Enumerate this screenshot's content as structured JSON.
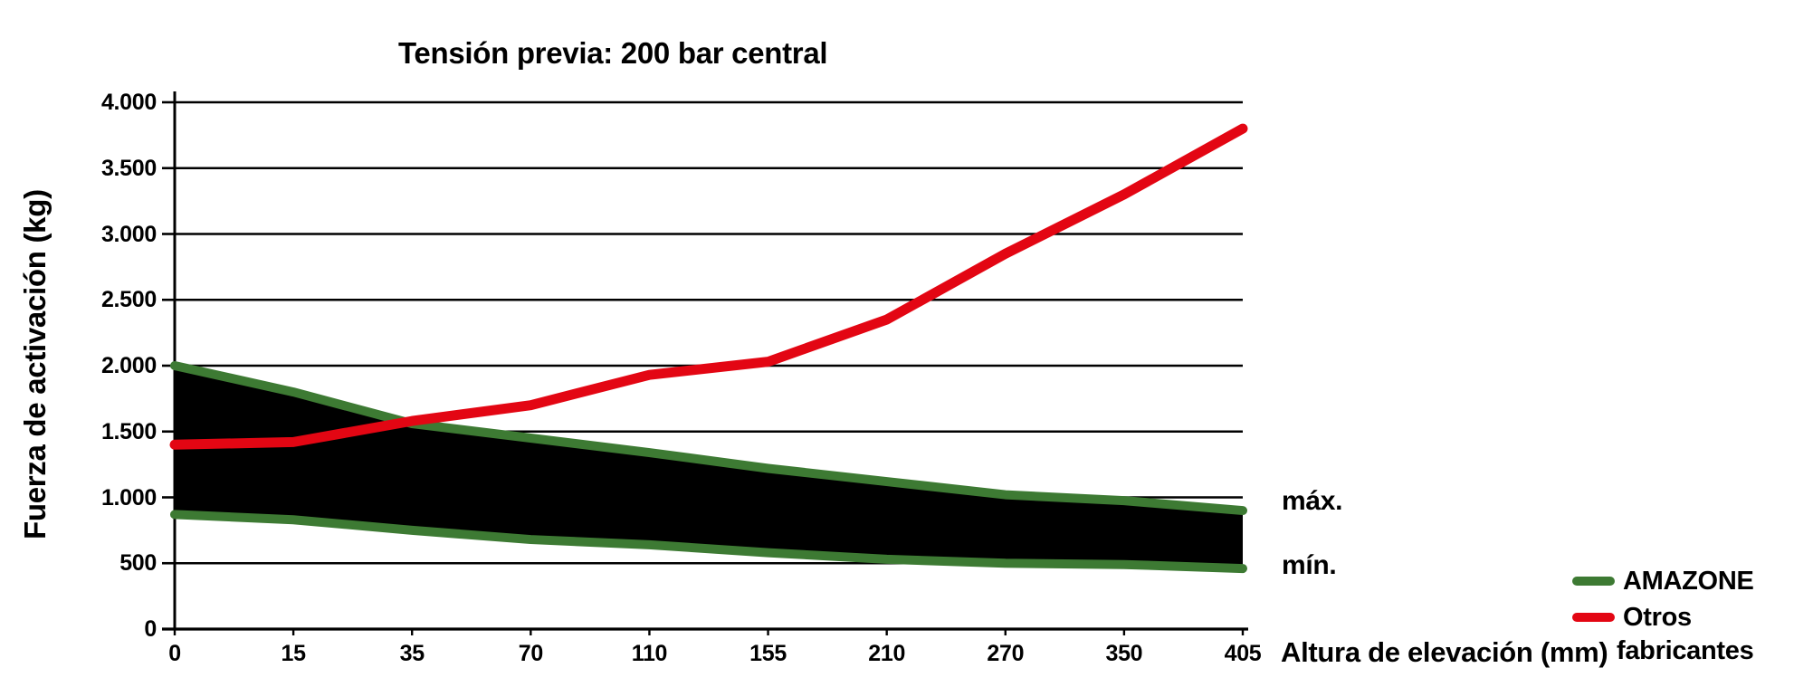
{
  "title": "Tensión previa: 200 bar central",
  "y_axis": {
    "title": "Fuerza de activación (kg)",
    "tick_labels": [
      "0",
      "500",
      "1.000",
      "1.500",
      "2.000",
      "2.500",
      "3.000",
      "3.500",
      "4.000"
    ],
    "tick_values": [
      0,
      500,
      1000,
      1500,
      2000,
      2500,
      3000,
      3500,
      4000
    ]
  },
  "x_axis": {
    "title": "Altura de elevación (mm)",
    "tick_labels": [
      "0",
      "15",
      "35",
      "70",
      "110",
      "155",
      "210",
      "270",
      "350",
      "405"
    ]
  },
  "band_labels": {
    "max": "máx.",
    "min": "mín."
  },
  "legend": {
    "amazone": {
      "label": "AMAZONE",
      "color": "#3d7a33"
    },
    "otros": {
      "label_line1": "Otros",
      "label_line2": "fabricantes",
      "color": "#e30613"
    }
  },
  "colors": {
    "amazone_green": "#3d7a33",
    "otros_red": "#e30613",
    "band_fill": "#000000",
    "axis_black": "#000000"
  },
  "chart_data": {
    "type": "line",
    "title": "Tensión previa: 200 bar central",
    "xlabel": "Altura de elevación (mm)",
    "ylabel": "Fuerza de activación (kg)",
    "x": [
      0,
      15,
      35,
      70,
      110,
      155,
      210,
      270,
      350,
      405
    ],
    "series": [
      {
        "name": "AMAZONE máx.",
        "color": "#3d7a33",
        "values": [
          2000,
          1800,
          1560,
          1450,
          1340,
          1220,
          1120,
          1020,
          975,
          900
        ]
      },
      {
        "name": "AMAZONE mín.",
        "color": "#3d7a33",
        "values": [
          870,
          830,
          750,
          680,
          640,
          580,
          530,
          500,
          490,
          460
        ]
      },
      {
        "name": "Otros fabricantes",
        "color": "#e30613",
        "values": [
          1400,
          1420,
          1580,
          1700,
          1930,
          2030,
          2350,
          2850,
          3300,
          3800
        ]
      }
    ],
    "band_between_series": [
      0,
      1
    ],
    "band_fill": "#000000",
    "ylim": [
      0,
      4000
    ],
    "ytick_step": 500,
    "grid": true,
    "legend_position": "right-bottom"
  }
}
